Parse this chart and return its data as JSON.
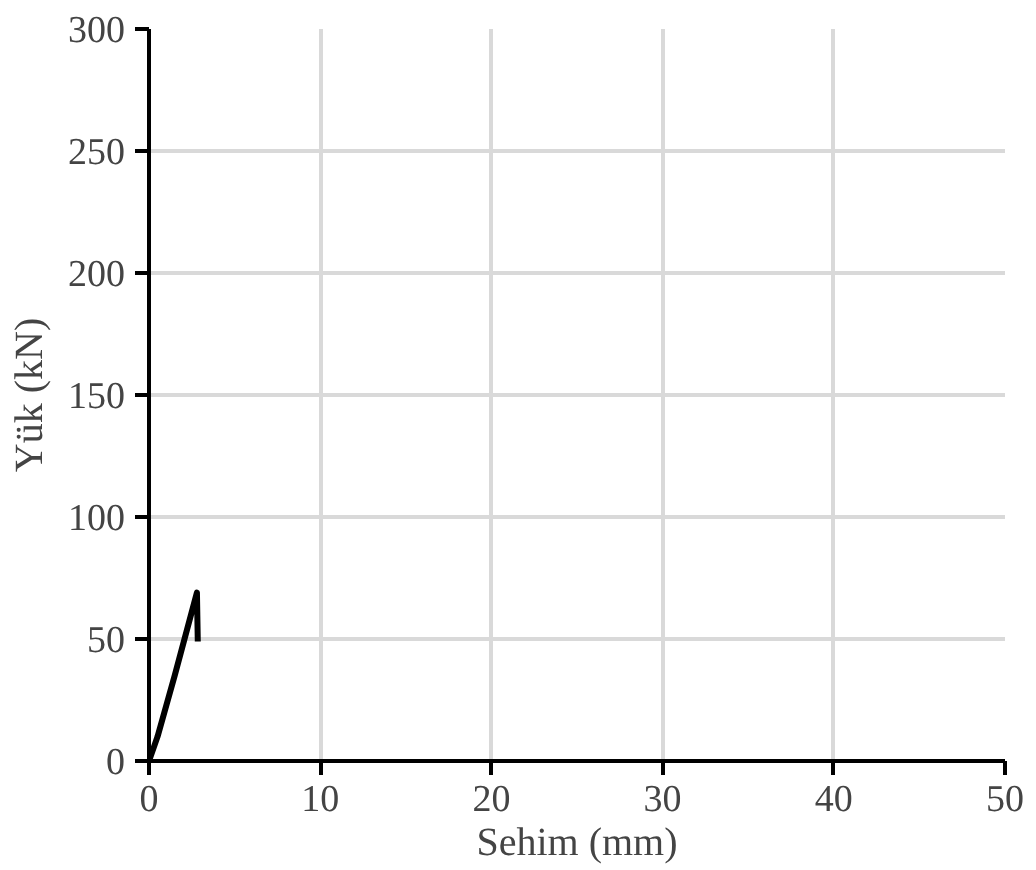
{
  "chart_data": {
    "type": "line",
    "xlabel": "Sehim (mm)",
    "ylabel": "Yük (kN)",
    "series": [
      {
        "color": "#000000",
        "x": [
          0,
          0.5,
          1.5,
          2.8,
          2.85
        ],
        "values": [
          0,
          10,
          35,
          69,
          49
        ]
      }
    ],
    "xlim": [
      0,
      50
    ],
    "ylim": [
      0,
      300
    ],
    "xticks": [
      0,
      10,
      20,
      30,
      40,
      50
    ],
    "yticks": [
      0,
      50,
      100,
      150,
      200,
      250,
      300
    ],
    "grid": true,
    "marker": "none",
    "line_style": "solid"
  }
}
